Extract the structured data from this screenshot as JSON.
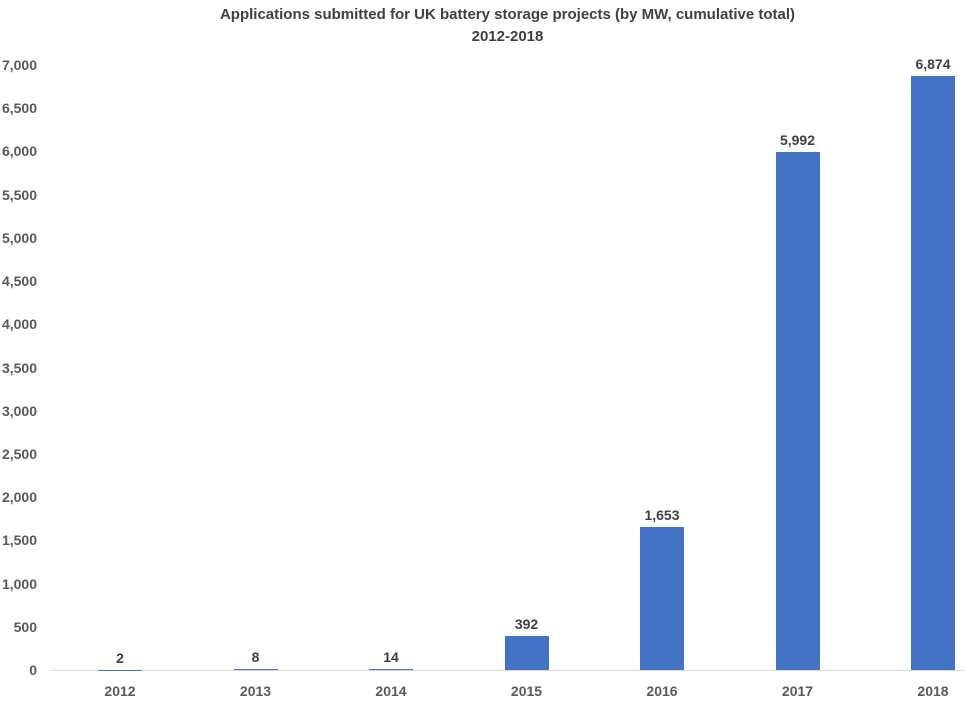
{
  "chart_data": {
    "type": "bar",
    "title": "Applications submitted for UK battery storage projects (by MW, cumulative total)",
    "subtitle": "2012-2018",
    "categories": [
      "2012",
      "2013",
      "2014",
      "2015",
      "2016",
      "2017",
      "2018"
    ],
    "values": [
      2,
      8,
      14,
      392,
      1653,
      5992,
      6874
    ],
    "data_labels": [
      "2",
      "8",
      "14",
      "392",
      "1,653",
      "5,992",
      "6,874"
    ],
    "xlabel": "",
    "ylabel": "",
    "ylim": [
      0,
      7000
    ],
    "ytick_step": 500,
    "ytick_labels": [
      "0",
      "500",
      "1,000",
      "1,500",
      "2,000",
      "2,500",
      "3,000",
      "3,500",
      "4,000",
      "4,500",
      "5,000",
      "5,500",
      "6,000",
      "6,500",
      "7,000"
    ],
    "grid": false,
    "legend": "none",
    "colors": {
      "bar": "#4472c4",
      "axis_line": "#d9d9d9",
      "title_text": "#404040",
      "tick_text": "#595959",
      "data_label_text": "#404040",
      "background": "#ffffff"
    }
  }
}
